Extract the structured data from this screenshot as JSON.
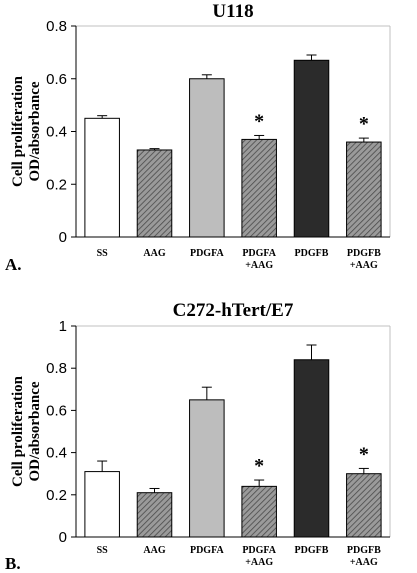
{
  "chart_data": [
    {
      "type": "bar",
      "title": "U118",
      "ylabel": "Cell proliferation OD/absorbance",
      "ylabel_lines": [
        "Cell proliferation",
        "OD/absorbance"
      ],
      "panel_label": "A.",
      "ylim": [
        0,
        0.8
      ],
      "yticks": [
        "0",
        "0.2",
        "0.4",
        "0.6",
        "0.8"
      ],
      "categories": [
        {
          "lines": [
            "SS"
          ]
        },
        {
          "lines": [
            "AAG"
          ]
        },
        {
          "lines": [
            "PDGFA"
          ]
        },
        {
          "lines": [
            "PDGFA",
            "+AAG"
          ]
        },
        {
          "lines": [
            "PDGFB"
          ]
        },
        {
          "lines": [
            "PDGFB",
            "+AAG"
          ]
        }
      ],
      "values": [
        0.45,
        0.33,
        0.6,
        0.37,
        0.67,
        0.36
      ],
      "errors": [
        0.01,
        0.005,
        0.015,
        0.015,
        0.02,
        0.015
      ],
      "fills": [
        "white",
        "hatch",
        "light-gray",
        "hatch",
        "black",
        "hatch"
      ],
      "annotations": [
        "",
        "",
        "",
        "*",
        "",
        "*"
      ]
    },
    {
      "type": "bar",
      "title": "C272-hTert/E7",
      "ylabel": "Cell proliferation OD/absorbance",
      "ylabel_lines": [
        "Cell proliferation",
        "OD/absorbance"
      ],
      "panel_label": "B.",
      "ylim": [
        0,
        1
      ],
      "yticks": [
        "0",
        "0.2",
        "0.4",
        "0.6",
        "0.8",
        "1"
      ],
      "categories": [
        {
          "lines": [
            "SS"
          ]
        },
        {
          "lines": [
            "AAG"
          ]
        },
        {
          "lines": [
            "PDGFA"
          ]
        },
        {
          "lines": [
            "PDGFA",
            "+AAG"
          ]
        },
        {
          "lines": [
            "PDGFB"
          ]
        },
        {
          "lines": [
            "PDGFB",
            "+AAG"
          ]
        }
      ],
      "values": [
        0.31,
        0.21,
        0.65,
        0.24,
        0.84,
        0.3
      ],
      "errors": [
        0.05,
        0.02,
        0.06,
        0.03,
        0.07,
        0.025
      ],
      "fills": [
        "white",
        "hatch",
        "light-gray",
        "hatch",
        "black",
        "hatch"
      ],
      "annotations": [
        "",
        "",
        "",
        "*",
        "",
        "*"
      ]
    }
  ],
  "colors": {
    "white": "#ffffff",
    "light-gray": "#bdbdbd",
    "black": "#2b2b2b",
    "hatch": "#7a7a7a",
    "frame": "#c0c0c0"
  }
}
